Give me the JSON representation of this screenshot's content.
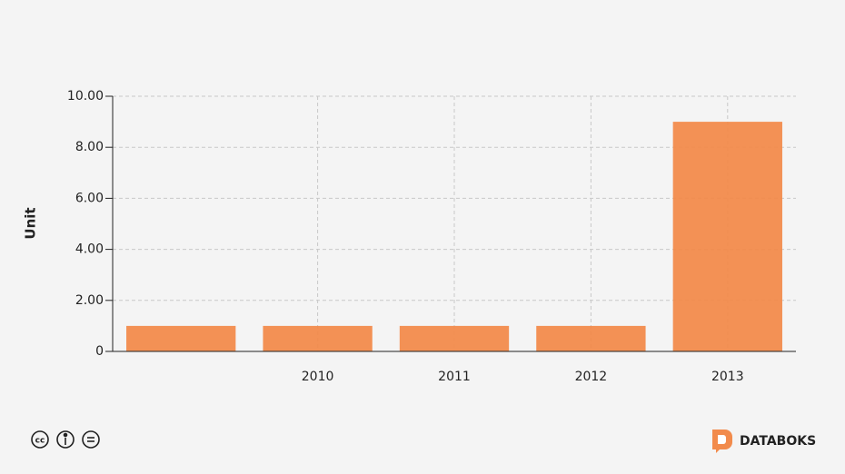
{
  "chart_data": {
    "type": "bar",
    "y_label": "Unit",
    "categories": [
      null,
      "2010",
      "2011",
      "2012",
      "2013"
    ],
    "values": [
      1,
      1,
      1,
      1,
      9
    ],
    "color": "#f28b4c",
    "ylim": [
      0,
      10
    ],
    "yticks": [
      0,
      {
        "value": 2,
        "label": "2.00"
      },
      {
        "value": 4,
        "label": "4.00"
      },
      {
        "value": 6,
        "label": "6.00"
      },
      {
        "value": 8,
        "label": "8.00"
      },
      {
        "value": 10,
        "label": "10.00"
      }
    ],
    "grid": true
  },
  "footer": {
    "brand": "DATABOKS"
  }
}
